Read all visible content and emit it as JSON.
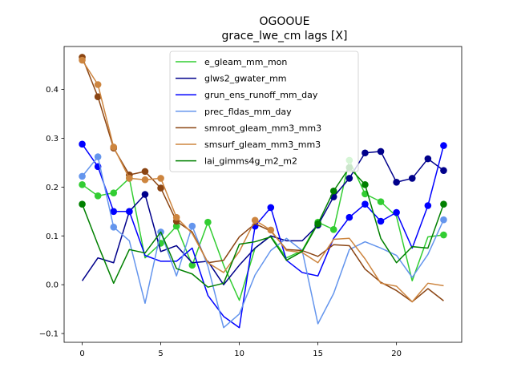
{
  "chart_data": {
    "type": "line",
    "title": "OGOOUE",
    "subtitle": "grace_lwe_cm lags [X]",
    "xlabel": "",
    "ylabel": "",
    "xlim": [
      -1.15,
      24.15
    ],
    "ylim": [
      -0.118,
      0.488
    ],
    "x_ticks": [
      0,
      5,
      10,
      15,
      20
    ],
    "y_ticks": [
      -0.1,
      0.0,
      0.1,
      0.2,
      0.3,
      0.4
    ],
    "y_tick_labels": [
      "−0.1",
      "0.0",
      "0.1",
      "0.2",
      "0.3",
      "0.4"
    ],
    "legend_position": "top-center",
    "grid": false,
    "x": [
      0,
      1,
      2,
      3,
      4,
      5,
      6,
      7,
      8,
      9,
      10,
      11,
      12,
      13,
      14,
      15,
      16,
      17,
      18,
      19,
      20,
      21,
      22,
      23
    ],
    "series": [
      {
        "name": "e_gleam_mm_mon",
        "color": "#32cd32",
        "values": [
          0.205,
          0.182,
          0.188,
          0.218,
          0.055,
          0.085,
          0.12,
          0.04,
          0.128,
          0.04,
          -0.032,
          0.075,
          0.1,
          0.055,
          0.07,
          0.128,
          0.113,
          0.255,
          0.186,
          0.17,
          0.14,
          0.008,
          0.098,
          0.102
        ],
        "markers": [
          0,
          1,
          2,
          3,
          5,
          6,
          7,
          8,
          15,
          16,
          17,
          18,
          19,
          23
        ]
      },
      {
        "name": "glws2_gwater_mm",
        "color": "#00008b",
        "values": [
          0.008,
          0.055,
          0.045,
          0.15,
          0.185,
          0.068,
          0.08,
          0.045,
          0.048,
          0.0,
          0.04,
          0.075,
          0.1,
          0.09,
          0.09,
          0.122,
          0.18,
          0.218,
          0.27,
          0.273,
          0.21,
          0.218,
          0.258,
          0.234
        ],
        "markers": [
          3,
          4,
          15,
          16,
          17,
          18,
          19,
          20,
          21,
          22,
          23
        ]
      },
      {
        "name": "grun_ens_runoff_mm_day",
        "color": "#0000ff",
        "values": [
          0.288,
          0.242,
          0.15,
          0.15,
          0.06,
          0.048,
          0.048,
          0.075,
          -0.022,
          -0.065,
          -0.088,
          0.12,
          0.158,
          0.05,
          0.025,
          0.018,
          0.095,
          0.138,
          0.165,
          0.13,
          0.148,
          0.075,
          0.162,
          0.285
        ],
        "markers": [
          0,
          1,
          2,
          3,
          11,
          12,
          17,
          18,
          19,
          20,
          22,
          23
        ]
      },
      {
        "name": "prec_fldas_mm_day",
        "color": "#6495ed",
        "values": [
          0.222,
          0.262,
          0.118,
          0.09,
          -0.038,
          0.108,
          0.018,
          0.12,
          0.038,
          -0.088,
          -0.06,
          0.02,
          0.07,
          0.095,
          0.07,
          -0.08,
          -0.018,
          0.072,
          0.088,
          0.075,
          0.06,
          0.015,
          0.062,
          0.133
        ],
        "markers": [
          0,
          1,
          2,
          5,
          7,
          23
        ]
      },
      {
        "name": "smroot_gleam_mm3_mm3",
        "color": "#8b4513",
        "values": [
          0.466,
          0.385,
          0.28,
          0.225,
          0.232,
          0.198,
          0.13,
          0.108,
          0.045,
          0.05,
          0.098,
          0.125,
          0.11,
          0.072,
          0.07,
          0.058,
          0.082,
          0.08,
          0.032,
          0.005,
          -0.012,
          -0.035,
          -0.008,
          -0.033
        ],
        "markers": [
          0,
          1,
          2,
          3,
          4,
          5,
          6
        ]
      },
      {
        "name": "smsurf_gleam_mm3_mm3",
        "color": "#cd853f",
        "values": [
          0.46,
          0.41,
          0.282,
          0.218,
          0.215,
          0.218,
          0.138,
          0.105,
          0.045,
          0.025,
          0.068,
          0.132,
          0.112,
          0.07,
          0.066,
          0.045,
          0.093,
          0.095,
          0.053,
          0.003,
          -0.003,
          -0.035,
          0.003,
          -0.002
        ],
        "markers": [
          0,
          1,
          2,
          3,
          4,
          5,
          6,
          11,
          12
        ]
      },
      {
        "name": "lai_gimms4g_m2_m2",
        "color": "#008000",
        "values": [
          0.165,
          0.082,
          0.003,
          0.072,
          0.065,
          0.108,
          0.033,
          0.022,
          -0.005,
          0.003,
          0.083,
          0.088,
          0.098,
          0.05,
          0.068,
          0.125,
          0.192,
          0.24,
          0.205,
          0.095,
          0.045,
          0.078,
          0.075,
          0.165
        ],
        "markers": [
          0,
          15,
          16,
          17,
          18,
          23
        ]
      }
    ]
  }
}
